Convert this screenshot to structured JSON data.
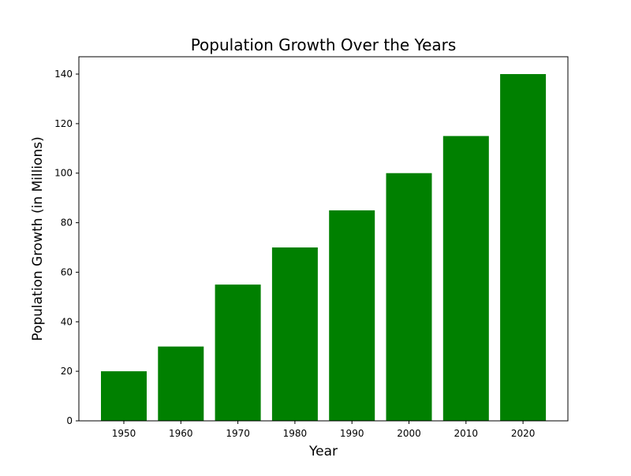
{
  "chart_data": {
    "type": "bar",
    "title": "Population Growth Over the Years",
    "xlabel": "Year",
    "ylabel": "Population Growth (in Millions)",
    "categories": [
      "1950",
      "1960",
      "1970",
      "1980",
      "1990",
      "2000",
      "2010",
      "2020"
    ],
    "values": [
      20,
      30,
      55,
      70,
      85,
      100,
      115,
      140
    ],
    "ylim": [
      0,
      147
    ],
    "yticks": [
      0,
      20,
      40,
      60,
      80,
      100,
      120,
      140
    ],
    "ytick_labels": [
      "0",
      "20",
      "40",
      "60",
      "80",
      "100",
      "120",
      "140"
    ],
    "bar_color": "#008000",
    "grid": false,
    "legend": "none"
  }
}
